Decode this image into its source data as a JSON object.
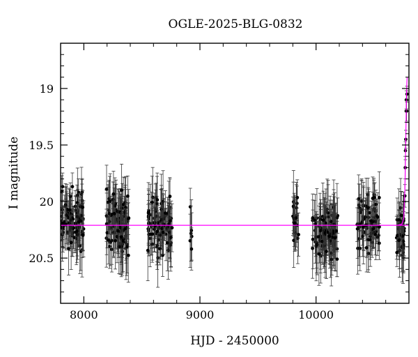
{
  "chart_data": {
    "type": "scatter",
    "title": "OGLE-2025-BLG-0832",
    "xlabel": "HJD - 2450000",
    "ylabel": "I magnitude",
    "xlim": [
      7800,
      10800
    ],
    "ylim": [
      20.9,
      18.6
    ],
    "y_inverted": true,
    "xticks": [
      8000,
      9000,
      10000
    ],
    "xtick_labels": [
      "8000",
      "9000",
      "10000"
    ],
    "yticks": [
      19,
      19.5,
      20,
      20.5
    ],
    "ytick_labels": [
      "19",
      "19.5",
      "20",
      "20.5"
    ],
    "grid": false,
    "baseline": {
      "value": 20.21,
      "color": "#ff00ff"
    },
    "model_curve_color": "#ff00ff",
    "marker_color": "#000000",
    "model_curve": [
      [
        10700,
        20.21
      ],
      [
        10740,
        20.2
      ],
      [
        10755,
        20.15
      ],
      [
        10765,
        19.9
      ],
      [
        10772,
        19.5
      ],
      [
        10778,
        19.1
      ],
      [
        10782,
        18.95
      ],
      [
        10785,
        18.9
      ]
    ],
    "seasons": [
      {
        "start": 7810,
        "end": 8000,
        "mean": 20.15,
        "spread": 0.3,
        "n": 90,
        "err": 0.18
      },
      {
        "start": 8190,
        "end": 8390,
        "mean": 20.2,
        "spread": 0.3,
        "n": 90,
        "err": 0.2
      },
      {
        "start": 8550,
        "end": 8760,
        "mean": 20.2,
        "spread": 0.3,
        "n": 90,
        "err": 0.2
      },
      {
        "start": 8910,
        "end": 8930,
        "mean": 20.25,
        "spread": 0.35,
        "n": 6,
        "err": 0.2
      },
      {
        "start": 9800,
        "end": 9850,
        "mean": 20.2,
        "spread": 0.25,
        "n": 18,
        "err": 0.2
      },
      {
        "start": 9970,
        "end": 10190,
        "mean": 20.25,
        "spread": 0.3,
        "n": 90,
        "err": 0.22
      },
      {
        "start": 10350,
        "end": 10550,
        "mean": 20.2,
        "spread": 0.3,
        "n": 70,
        "err": 0.2
      },
      {
        "start": 10690,
        "end": 10760,
        "mean": 20.25,
        "spread": 0.3,
        "n": 35,
        "err": 0.2
      }
    ],
    "rise_points": [
      {
        "x": 10765,
        "y": 19.95,
        "err": 0.1
      },
      {
        "x": 10768,
        "y": 19.7,
        "err": 0.1
      },
      {
        "x": 10770,
        "y": 19.55,
        "err": 0.08
      },
      {
        "x": 10773,
        "y": 19.45,
        "err": 0.08
      },
      {
        "x": 10776,
        "y": 19.2,
        "err": 0.1
      },
      {
        "x": 10778,
        "y": 19.1,
        "err": 0.08
      },
      {
        "x": 10780,
        "y": 19.2,
        "err": 0.09
      },
      {
        "x": 10783,
        "y": 19.05,
        "err": 0.07
      }
    ]
  }
}
